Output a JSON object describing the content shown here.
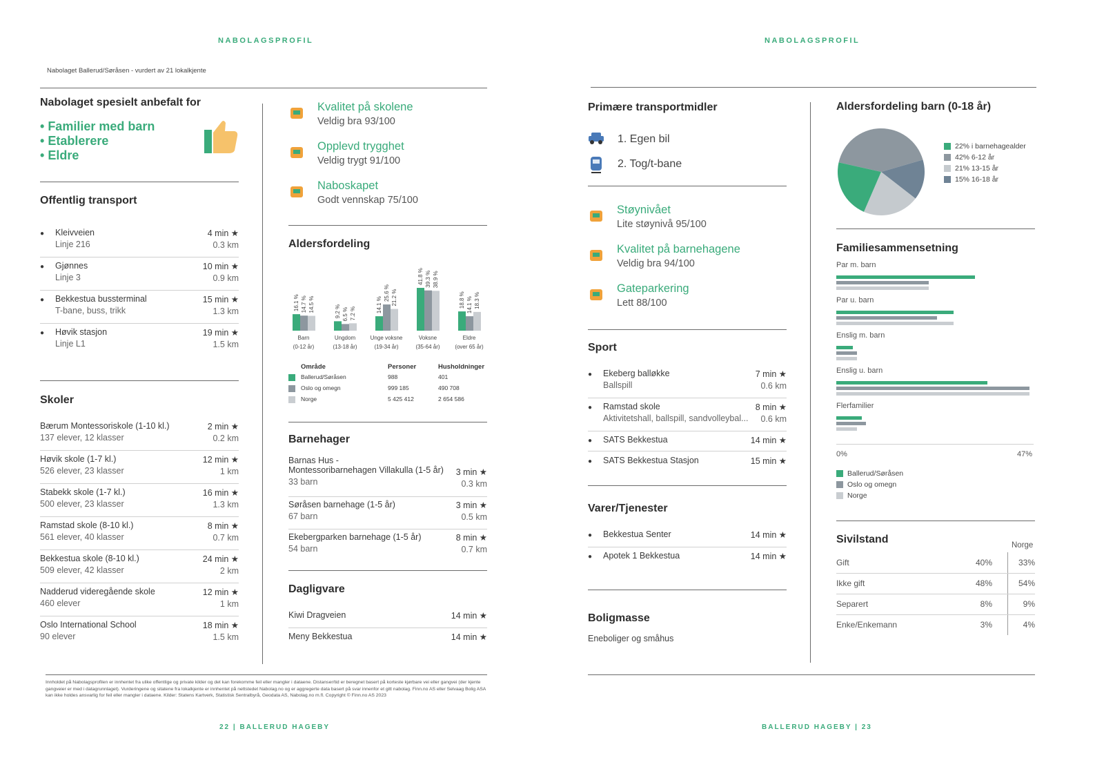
{
  "left": {
    "header": "NABOLAGSPROFIL",
    "subtitle": "Nabolaget Ballerud/Søråsen - vurdert av 21 lokalkjente",
    "recommended": {
      "title": "Nabolaget spesielt anbefalt for",
      "items": [
        "Familier med barn",
        "Etablerere",
        "Eldre"
      ]
    },
    "transport": {
      "title": "Offentlig transport",
      "rows": [
        {
          "name": "Kleivveien",
          "sub": "Linje 216",
          "time": "4 min",
          "dist": "0.3 km"
        },
        {
          "name": "Gjønnes",
          "sub": "Linje 3",
          "time": "10 min",
          "dist": "0.9 km"
        },
        {
          "name": "Bekkestua bussterminal",
          "sub": "T-bane, buss, trikk",
          "time": "15 min",
          "dist": "1.3 km"
        },
        {
          "name": "Høvik stasjon",
          "sub": "Linje L1",
          "time": "19 min",
          "dist": "1.5 km"
        }
      ]
    },
    "schools": {
      "title": "Skoler",
      "rows": [
        {
          "name": "Bærum Montessoriskole (1-10 kl.)",
          "sub": "137 elever, 12 klasser",
          "time": "2 min",
          "dist": "0.2 km"
        },
        {
          "name": "Høvik skole (1-7 kl.)",
          "sub": "526 elever, 23 klasser",
          "time": "12 min",
          "dist": "1 km"
        },
        {
          "name": "Stabekk skole (1-7 kl.)",
          "sub": "500 elever, 23 klasser",
          "time": "16 min",
          "dist": "1.3 km"
        },
        {
          "name": "Ramstad skole (8-10 kl.)",
          "sub": "561 elever, 40 klasser",
          "time": "8 min",
          "dist": "0.7 km"
        },
        {
          "name": "Bekkestua skole (8-10 kl.)",
          "sub": "509 elever, 42 klasser",
          "time": "24 min",
          "dist": "2 km"
        },
        {
          "name": "Nadderud videregående skole",
          "sub": "460 elever",
          "time": "12 min",
          "dist": "1 km"
        },
        {
          "name": "Oslo International School",
          "sub": "90 elever",
          "time": "18 min",
          "dist": "1.5 km"
        }
      ]
    },
    "ratings": [
      {
        "title": "Kvalitet på skolene",
        "value": "Veldig bra 93/100",
        "icon": "school-icon"
      },
      {
        "title": "Opplevd trygghet",
        "value": "Veldig trygt 91/100",
        "icon": "lock-icon"
      },
      {
        "title": "Naboskapet",
        "value": "Godt vennskap 75/100",
        "icon": "houses-icon"
      }
    ],
    "age": {
      "title": "Aldersfordeling",
      "groups": [
        {
          "label": "Barn",
          "range": "(0-12 år)",
          "vals": [
            "16.1 %",
            "14.7 %",
            "14.5 %"
          ]
        },
        {
          "label": "Ungdom",
          "range": "(13-18 år)",
          "vals": [
            "9.2 %",
            "6.5 %",
            "7.2 %"
          ]
        },
        {
          "label": "Unge voksne",
          "range": "(19-34 år)",
          "vals": [
            "14.1 %",
            "25.6 %",
            "21.2 %"
          ]
        },
        {
          "label": "Voksne",
          "range": "(35-64 år)",
          "vals": [
            "41.8 %",
            "39.3 %",
            "38.9 %"
          ]
        },
        {
          "label": "Eldre",
          "range": "(over 65 år)",
          "vals": [
            "18.8 %",
            "14.1 %",
            "18.3 %"
          ]
        }
      ],
      "table_head": [
        "Område",
        "Personer",
        "Husholdninger"
      ],
      "table": [
        [
          "Ballerud/Søråsen",
          "988",
          "401"
        ],
        [
          "Oslo og omegn",
          "999 185",
          "490 708"
        ],
        [
          "Norge",
          "5 425 412",
          "2 654 586"
        ]
      ]
    },
    "kindergartens": {
      "title": "Barnehager",
      "rows": [
        {
          "name": "Barnas Hus -",
          "name2": "Montessoribarnehagen Villakulla (1-5 år)",
          "sub": "33 barn",
          "time": "3 min",
          "dist": "0.3 km"
        },
        {
          "name": "Søråsen barnehage (1-5 år)",
          "sub": "67 barn",
          "time": "3 min",
          "dist": "0.5 km"
        },
        {
          "name": "Ekebergparken barnehage (1-5 år)",
          "sub": "54 barn",
          "time": "8 min",
          "dist": "0.7 km"
        }
      ]
    },
    "grocery": {
      "title": "Dagligvare",
      "rows": [
        {
          "name": "Kiwi Dragveien",
          "time": "14 min"
        },
        {
          "name": "Meny Bekkestua",
          "time": "14 min"
        }
      ]
    },
    "footer_note": "Innholdet på Nabolagsprofilen er innhentet fra ulike offentlige og private kilder og det kan forekomme feil eller mangler i dataene. Distanser/tid er beregnet basert på korteste kjørbare vei eller gangvei (der kjente gangveier er med i datagrunnlaget). Vurderingene og sitatene fra lokalkjente er innhentet på nettstedet Nabolag.no og er aggregerte data basert på svar innenfor et gitt nabolag. Finn.no AS eller Selvaag Bolig ASA kan ikke holdes ansvarlig for feil eller mangler i dataene. Kilder: Statens Kartverk, Statistisk Sentralbyrå, Geodata AS, Nabolag.no m.fl. Copyright © Finn.no AS 2023",
    "page": "22 | BALLERUD HAGEBY"
  },
  "right": {
    "header": "NABOLAGSPROFIL",
    "transport": {
      "title": "Primære transportmidler",
      "items": [
        "1. Egen bil",
        "2. Tog/t-bane"
      ]
    },
    "ratings": [
      {
        "title": "Støynivået",
        "value": "Lite støynivå 95/100",
        "icon": "bell-icon"
      },
      {
        "title": "Kvalitet på barnehagene",
        "value": "Veldig bra 94/100",
        "icon": "playground-icon"
      },
      {
        "title": "Gateparkering",
        "value": "Lett 88/100",
        "icon": "parking-icon"
      }
    ],
    "sport": {
      "title": "Sport",
      "rows": [
        {
          "name": "Ekeberg balløkke",
          "sub": "Ballspill",
          "time": "7 min",
          "dist": "0.6 km"
        },
        {
          "name": "Ramstad skole",
          "sub": "Aktivitetshall, ballspill, sandvolleybal...",
          "time": "8 min",
          "dist": "0.6 km"
        },
        {
          "name": "SATS Bekkestua",
          "time": "14 min"
        },
        {
          "name": "SATS Bekkestua Stasjon",
          "time": "15 min"
        }
      ]
    },
    "services": {
      "title": "Varer/Tjenester",
      "rows": [
        {
          "name": "Bekkestua Senter",
          "time": "14 min"
        },
        {
          "name": "Apotek 1 Bekkestua",
          "time": "14 min"
        }
      ]
    },
    "housing": {
      "title": "Boligmasse",
      "value": "Eneboliger og småhus"
    },
    "kids_age": {
      "title": "Aldersfordeling barn (0-18 år)",
      "legend": [
        "22% i barnehagealder",
        "42% 6-12 år",
        "21% 13-15 år",
        "15% 16-18 år"
      ]
    },
    "family": {
      "title": "Familiesammensetning",
      "groups": [
        {
          "label": "Par m. barn",
          "vals": [
            33,
            22,
            22
          ]
        },
        {
          "label": "Par u. barn",
          "vals": [
            28,
            24,
            28
          ]
        },
        {
          "label": "Enslig m. barn",
          "vals": [
            4,
            5,
            5
          ]
        },
        {
          "label": "Enslig u. barn",
          "vals": [
            36,
            46,
            46
          ]
        },
        {
          "label": "Flerfamilier",
          "vals": [
            6,
            7,
            5
          ]
        }
      ],
      "axis_min": "0%",
      "axis_max": "47%",
      "legend": [
        "Ballerud/Søråsen",
        "Oslo og omegn",
        "Norge"
      ]
    },
    "civil": {
      "title": "Sivilstand",
      "norge": "Norge",
      "rows": [
        {
          "label": "Gift",
          "local": "40%",
          "norge": "33%"
        },
        {
          "label": "Ikke gift",
          "local": "48%",
          "norge": "54%"
        },
        {
          "label": "Separert",
          "local": "8%",
          "norge": "9%"
        },
        {
          "label": "Enke/Enkemann",
          "local": "3%",
          "norge": "4%"
        }
      ]
    },
    "page": "BALLERUD HAGEBY | 23"
  },
  "chart_data": [
    {
      "type": "bar",
      "title": "Aldersfordeling",
      "categories": [
        "Barn (0-12 år)",
        "Ungdom (13-18 år)",
        "Unge voksne (19-34 år)",
        "Voksne (35-64 år)",
        "Eldre (over 65 år)"
      ],
      "series": [
        {
          "name": "Ballerud/Søråsen",
          "values": [
            16.1,
            9.2,
            14.1,
            41.8,
            18.8
          ]
        },
        {
          "name": "Oslo og omegn",
          "values": [
            14.7,
            6.5,
            25.6,
            39.3,
            14.1
          ]
        },
        {
          "name": "Norge",
          "values": [
            14.5,
            7.2,
            21.2,
            38.9,
            18.3
          ]
        }
      ]
    },
    {
      "type": "pie",
      "title": "Aldersfordeling barn (0-18 år)",
      "categories": [
        "i barnehagealder",
        "6-12 år",
        "13-15 år",
        "16-18 år"
      ],
      "values": [
        22,
        42,
        21,
        15
      ]
    },
    {
      "type": "bar",
      "title": "Familiesammensetning",
      "categories": [
        "Par m. barn",
        "Par u. barn",
        "Enslig m. barn",
        "Enslig u. barn",
        "Flerfamilier"
      ],
      "xlim": [
        0,
        47
      ],
      "series": [
        {
          "name": "Ballerud/Søråsen",
          "values": [
            33,
            28,
            4,
            36,
            6
          ]
        },
        {
          "name": "Oslo og omegn",
          "values": [
            22,
            24,
            5,
            46,
            7
          ]
        },
        {
          "name": "Norge",
          "values": [
            22,
            28,
            5,
            46,
            5
          ]
        }
      ]
    }
  ],
  "colors": {
    "green": "#3aab7b",
    "dark": "#8d979f",
    "light": "#c9cdd1",
    "pie": [
      "#3aab7b",
      "#8d979f",
      "#c5cace",
      "#6f8395"
    ]
  }
}
